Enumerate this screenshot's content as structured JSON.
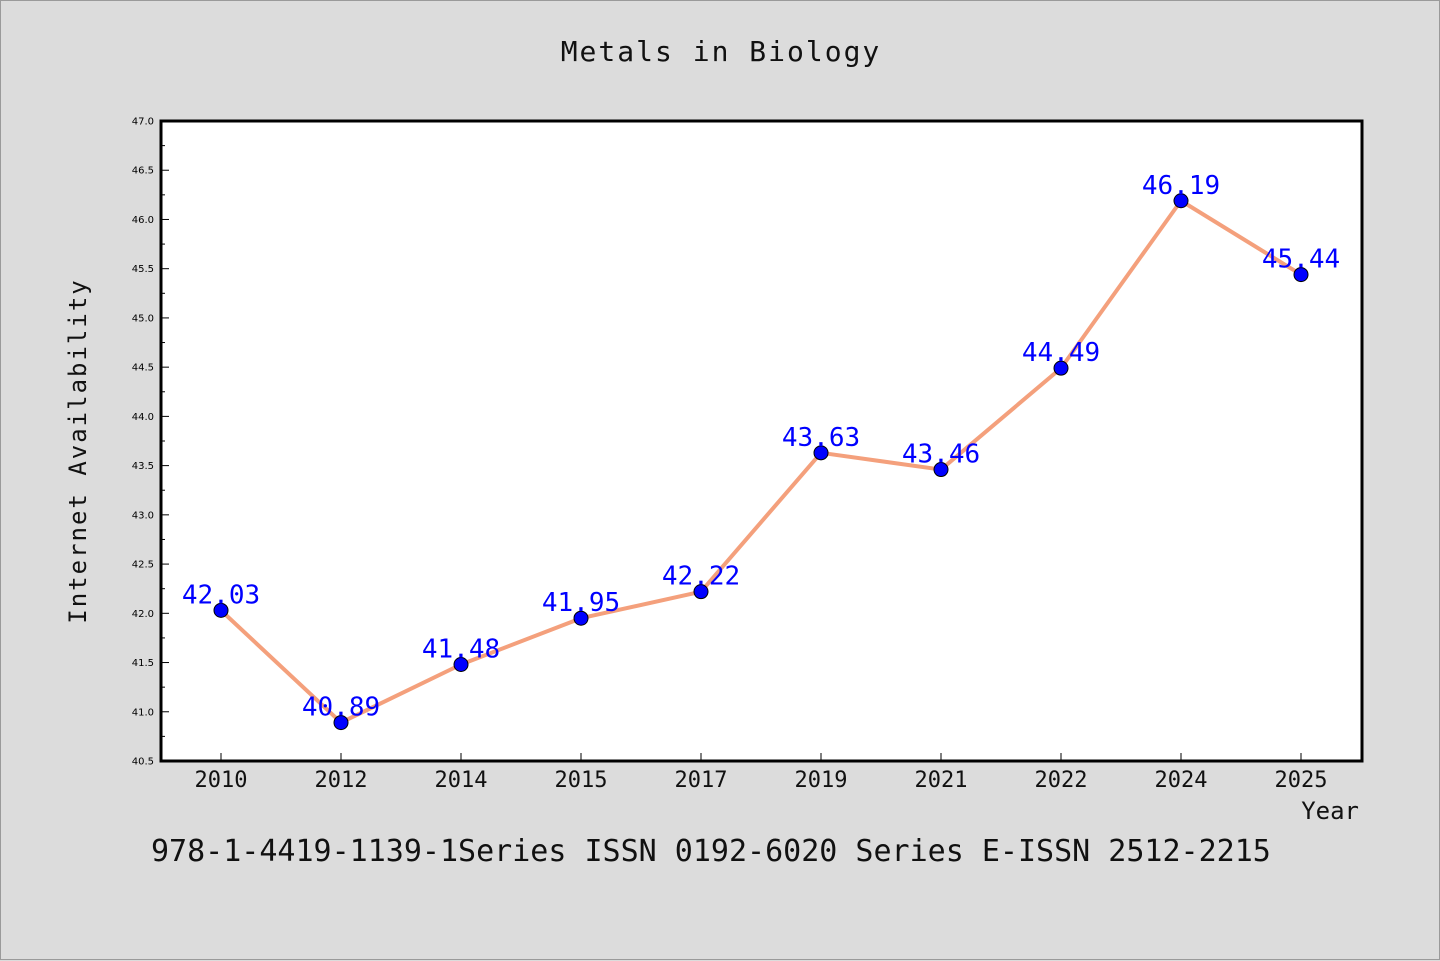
{
  "chart_data": {
    "type": "line",
    "title": "Metals in Biology",
    "xlabel": "Year",
    "ylabel": "Internet Availability",
    "categories": [
      "2010",
      "2012",
      "2014",
      "2015",
      "2017",
      "2019",
      "2021",
      "2022",
      "2024",
      "2025"
    ],
    "series": [
      {
        "values": [
          42.03,
          40.89,
          41.48,
          41.95,
          42.22,
          43.63,
          43.46,
          44.49,
          46.19,
          45.44
        ]
      }
    ],
    "data_labels": [
      "42.03",
      "40.89",
      "41.48",
      "41.95",
      "42.22",
      "43.63",
      "43.46",
      "44.49",
      "46.19",
      "45.44"
    ],
    "ylim": [
      40.5,
      47.0
    ],
    "yticks": [
      "40.5",
      "41.0",
      "41.5",
      "42.0",
      "42.5",
      "43.0",
      "43.5",
      "44.0",
      "44.5",
      "45.0",
      "45.5",
      "46.0",
      "46.5",
      "47.0"
    ],
    "grid": false,
    "colors": {
      "line": "#f4a07c",
      "marker": "#0000ff",
      "label": "#0000ff",
      "plot_bg": "#ffffff",
      "page_bg": "#dcdcdc"
    }
  },
  "footer": {
    "text": "978-1-4419-1139-1Series ISSN 0192-6020 Series E-ISSN 2512-2215"
  }
}
